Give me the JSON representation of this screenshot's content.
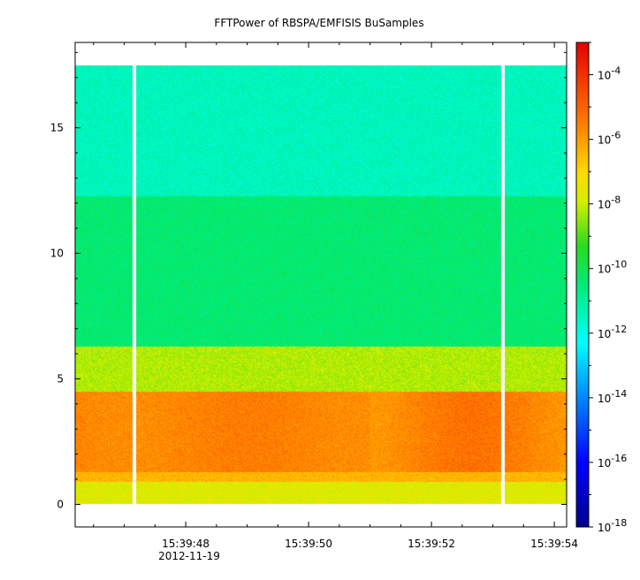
{
  "chart_data": {
    "type": "heatmap",
    "title": "FFTPower of RBSPA/EMFISIS  BuSamples",
    "xlabel": "",
    "ylabel": "",
    "x_ticks": [
      "15:39:48",
      "15:39:50",
      "15:39:52",
      "15:39:54"
    ],
    "x_tick_seconds": [
      48,
      50,
      52,
      54
    ],
    "x_date_label": "2012-11-19",
    "xlim_seconds": [
      46.2,
      54.2
    ],
    "y_ticks": [
      "0",
      "5",
      "10",
      "15"
    ],
    "y_tick_values": [
      0,
      5,
      10,
      15
    ],
    "ylim": [
      -0.9,
      18.4
    ],
    "data_extent": {
      "y": [
        0.05,
        17.5
      ]
    },
    "gaps_seconds": [
      47.15,
      53.15
    ],
    "colorbar": {
      "scale": "log",
      "range": [
        1e-18,
        0.001
      ],
      "tick_exponents": [
        -4,
        -6,
        -8,
        -10,
        -12,
        -14,
        -16,
        -18
      ],
      "tick_base": "10"
    },
    "bands": [
      {
        "y": [
          0.05,
          0.9
        ],
        "log10_power": -7.7
      },
      {
        "y": [
          0.9,
          1.3
        ],
        "log10_power": -6.4
      },
      {
        "y": [
          1.3,
          4.5
        ],
        "log10_power": -5.6
      },
      {
        "y": [
          4.5,
          6.3
        ],
        "log10_power": -8.2
      },
      {
        "y": [
          6.3,
          12.3
        ],
        "log10_power": -10.4
      },
      {
        "y": [
          12.3,
          17.5
        ],
        "log10_power": -11.4
      }
    ]
  }
}
